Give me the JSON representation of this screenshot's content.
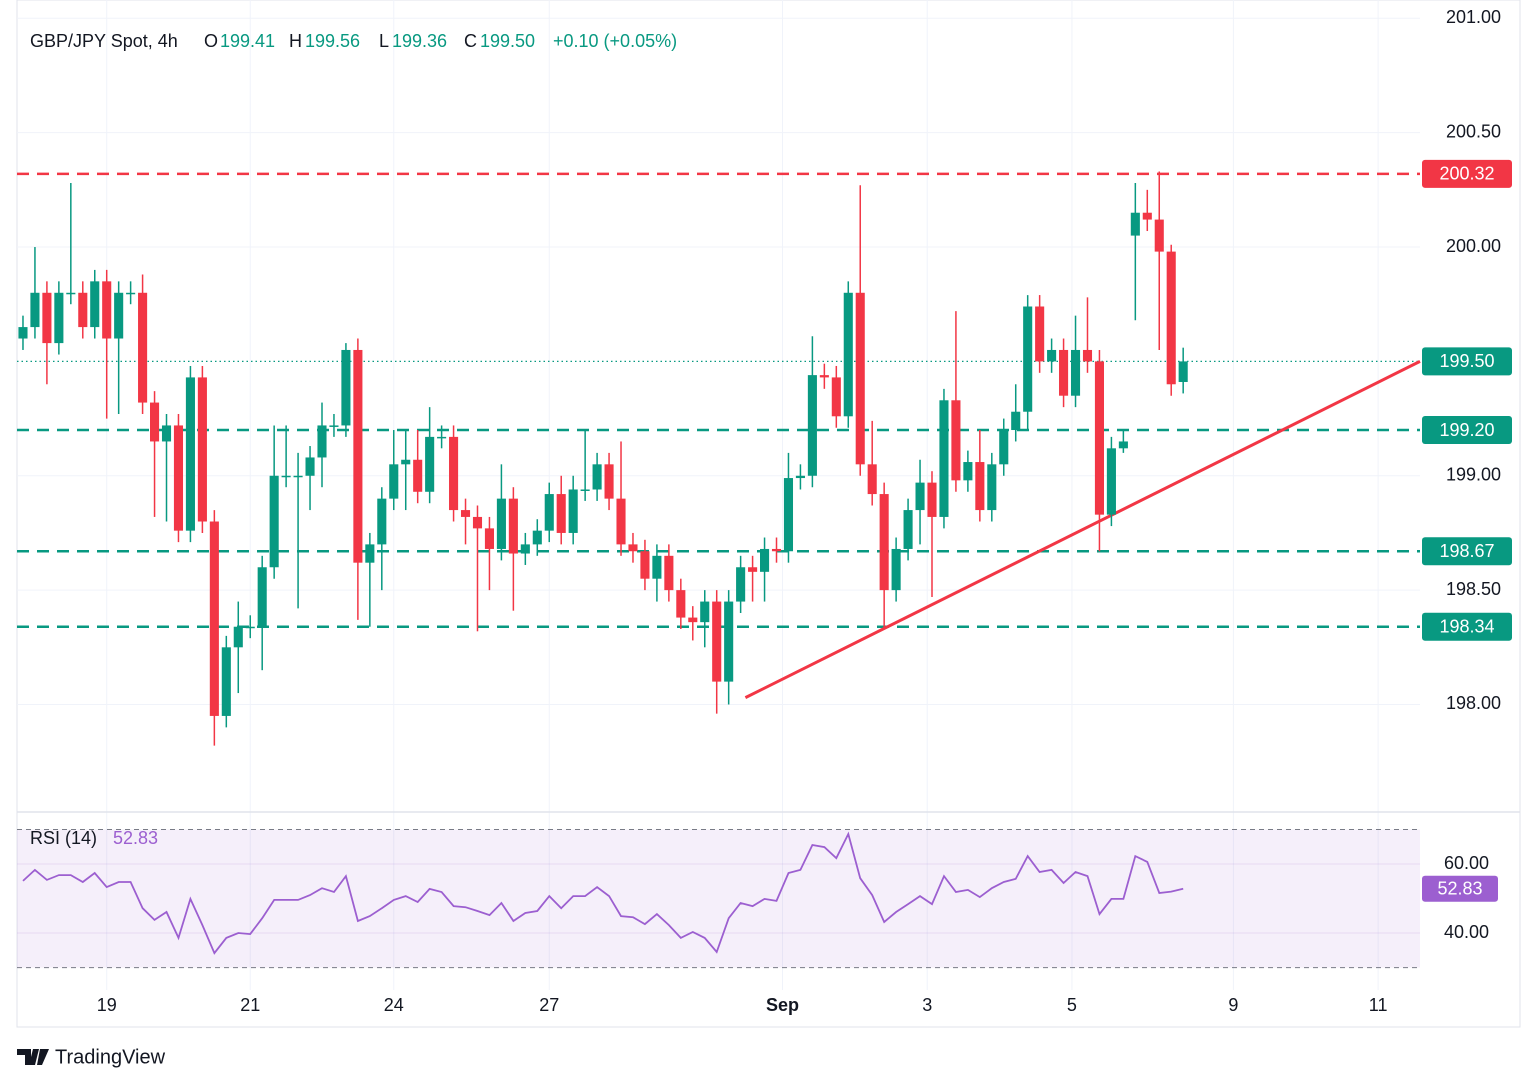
{
  "chart_data": {
    "type": "candlestick",
    "title": "GBP/JPY Spot, 4h",
    "legend_values": [
      {
        "name": "O",
        "label": "199.41"
      },
      {
        "name": "H",
        "label": "199.56"
      },
      {
        "name": "L",
        "label": "199.36"
      },
      {
        "name": "C",
        "label": "199.50"
      }
    ],
    "change": "+0.10 (+0.05%)",
    "up_color": "#089981",
    "down_color": "#f23645",
    "open": [
      199.6,
      199.65,
      199.8,
      199.58,
      199.8,
      199.8,
      199.65,
      199.85,
      199.6,
      199.8,
      199.8,
      199.32,
      199.15,
      199.22,
      198.76,
      199.43,
      198.8,
      197.95,
      198.25,
      198.34,
      198.34,
      198.6,
      199.0,
      199.0,
      199.0,
      199.08,
      199.22,
      199.22,
      199.55,
      198.62,
      198.7,
      198.9,
      199.05,
      199.07,
      198.93,
      199.17,
      199.17,
      198.85,
      198.82,
      198.77,
      198.68,
      198.9,
      198.66,
      198.7,
      198.76,
      198.92,
      198.75,
      198.94,
      198.94,
      199.05,
      198.9,
      198.7,
      198.67,
      198.55,
      198.65,
      198.5,
      198.38,
      198.36,
      198.45,
      198.1,
      198.45,
      198.6,
      198.58,
      198.68,
      198.67,
      198.99,
      199.0,
      199.44,
      199.43,
      199.26,
      199.8,
      199.05,
      198.92,
      198.5,
      198.68,
      198.85,
      198.97,
      198.82,
      199.33,
      198.98,
      199.06,
      198.85,
      199.05,
      199.2,
      199.28,
      199.74,
      199.5,
      199.55,
      199.35,
      199.55,
      199.5,
      198.83,
      199.12,
      200.05,
      200.15,
      200.12,
      199.98,
      199.41
    ],
    "high": [
      199.7,
      200.0,
      199.85,
      199.85,
      200.28,
      199.85,
      199.9,
      199.9,
      199.85,
      199.85,
      199.88,
      199.37,
      199.27,
      199.27,
      199.48,
      199.48,
      198.85,
      198.3,
      198.45,
      198.39,
      198.65,
      199.22,
      199.22,
      199.1,
      199.13,
      199.32,
      199.27,
      199.58,
      199.6,
      198.75,
      198.95,
      199.2,
      199.2,
      199.2,
      199.3,
      199.22,
      199.22,
      198.9,
      198.87,
      198.82,
      199.05,
      198.95,
      198.75,
      198.81,
      198.97,
      199.0,
      199.0,
      199.2,
      199.1,
      199.1,
      199.15,
      198.75,
      198.72,
      198.7,
      198.7,
      198.55,
      198.43,
      198.5,
      198.5,
      198.5,
      198.65,
      198.65,
      198.73,
      198.73,
      199.1,
      199.05,
      199.61,
      199.49,
      199.48,
      199.85,
      200.27,
      199.24,
      198.97,
      198.73,
      198.9,
      199.07,
      199.02,
      199.38,
      199.72,
      199.11,
      199.2,
      199.1,
      199.25,
      199.4,
      199.79,
      199.79,
      199.6,
      199.6,
      199.7,
      199.78,
      199.55,
      199.17,
      199.2,
      200.28,
      200.25,
      200.33,
      200.01,
      199.56
    ],
    "low": [
      199.55,
      199.6,
      199.4,
      199.53,
      199.75,
      199.6,
      199.6,
      199.25,
      199.27,
      199.75,
      199.27,
      198.82,
      198.8,
      198.71,
      198.71,
      198.75,
      197.82,
      197.9,
      198.05,
      198.29,
      198.15,
      198.55,
      198.95,
      198.42,
      198.85,
      198.95,
      199.17,
      199.17,
      198.37,
      198.34,
      198.5,
      198.85,
      198.85,
      198.88,
      198.88,
      199.12,
      198.8,
      198.7,
      198.32,
      198.5,
      198.63,
      198.41,
      198.61,
      198.65,
      198.71,
      198.7,
      198.7,
      198.89,
      198.89,
      198.85,
      198.65,
      198.62,
      198.5,
      198.45,
      198.45,
      198.33,
      198.28,
      198.25,
      197.96,
      198.0,
      198.4,
      198.45,
      198.45,
      198.62,
      198.62,
      198.94,
      198.95,
      199.38,
      199.21,
      199.21,
      199.0,
      198.87,
      198.33,
      198.45,
      198.63,
      198.7,
      198.47,
      198.77,
      198.93,
      198.93,
      198.8,
      198.8,
      199.0,
      199.15,
      199.2,
      199.45,
      199.45,
      199.3,
      199.3,
      199.45,
      198.67,
      198.78,
      199.1,
      199.68,
      200.07,
      199.55,
      199.35,
      199.36
    ],
    "close": [
      199.65,
      199.8,
      199.58,
      199.8,
      199.8,
      199.65,
      199.85,
      199.6,
      199.8,
      199.8,
      199.32,
      199.15,
      199.22,
      198.76,
      199.43,
      198.8,
      197.95,
      198.25,
      198.34,
      198.34,
      198.6,
      199.0,
      199.0,
      199.0,
      199.08,
      199.22,
      199.22,
      199.55,
      198.62,
      198.7,
      198.9,
      199.05,
      199.07,
      198.93,
      199.17,
      199.17,
      198.85,
      198.82,
      198.77,
      198.68,
      198.9,
      198.66,
      198.7,
      198.76,
      198.92,
      198.75,
      198.94,
      198.94,
      199.05,
      198.9,
      198.7,
      198.67,
      198.55,
      198.65,
      198.5,
      198.38,
      198.36,
      198.45,
      198.1,
      198.45,
      198.6,
      198.58,
      198.68,
      198.67,
      198.99,
      199.0,
      199.44,
      199.43,
      199.26,
      199.8,
      199.05,
      198.92,
      198.5,
      198.68,
      198.85,
      198.97,
      198.82,
      199.33,
      198.98,
      199.06,
      198.85,
      199.05,
      199.2,
      199.28,
      199.74,
      199.5,
      199.55,
      199.35,
      199.55,
      199.5,
      198.83,
      199.12,
      199.15,
      200.15,
      200.12,
      199.98,
      199.4,
      199.5
    ],
    "xlim": [
      -0.5,
      116.8
    ],
    "xticks": [
      {
        "value": 7,
        "label": "19"
      },
      {
        "value": 19,
        "label": "21"
      },
      {
        "value": 31,
        "label": "24"
      },
      {
        "value": 44,
        "label": "27"
      },
      {
        "value": 63.5,
        "label": "Sep"
      },
      {
        "value": 75.6,
        "label": "3"
      },
      {
        "value": 87.7,
        "label": "5"
      },
      {
        "value": 101.2,
        "label": "9"
      },
      {
        "value": 113.3,
        "label": "11"
      }
    ],
    "ylim": [
      197.53,
      201.08
    ],
    "yticks": [
      {
        "value": 198,
        "label": "198.00"
      },
      {
        "value": 198.5,
        "label": "198.50"
      },
      {
        "value": 199,
        "label": "199.00"
      },
      {
        "value": 200,
        "label": "200.00"
      },
      {
        "value": 200.5,
        "label": "200.50"
      },
      {
        "value": 201,
        "label": "201.00"
      }
    ],
    "grid": true,
    "levels": [
      {
        "value": 200.32,
        "label": "200.32",
        "color": "#f23645",
        "style": "dashed"
      },
      {
        "value": 199.5,
        "label": "199.50",
        "color": "#089981",
        "style": "dotted"
      },
      {
        "value": 199.2,
        "label": "199.20",
        "color": "#089981",
        "style": "dashed"
      },
      {
        "value": 198.67,
        "label": "198.67",
        "color": "#089981",
        "style": "dashed"
      },
      {
        "value": 198.34,
        "label": "198.34",
        "color": "#089981",
        "style": "dashed"
      }
    ],
    "trendline": {
      "color": "#f23645",
      "x": [
        60.4,
        116.8
      ],
      "y": [
        198.03,
        199.5
      ]
    },
    "rsi": {
      "name": "RSI (14)",
      "value_label": "52.83",
      "color": "#9c5fd0",
      "values": [
        55.1,
        58.3,
        55.4,
        56.8,
        56.8,
        54.8,
        57.4,
        53.3,
        54.8,
        54.8,
        47.2,
        43.8,
        46.1,
        38.6,
        49.9,
        42.3,
        34.2,
        38.6,
        40.0,
        39.7,
        44.3,
        49.6,
        49.6,
        49.6,
        51.0,
        53.0,
        51.9,
        56.5,
        43.5,
        44.9,
        47.2,
        49.6,
        50.7,
        49.0,
        52.8,
        51.9,
        47.8,
        47.5,
        46.4,
        45.2,
        48.7,
        43.5,
        45.8,
        46.4,
        50.7,
        47.2,
        50.7,
        50.7,
        53.3,
        50.7,
        44.9,
        44.6,
        42.6,
        45.5,
        42.3,
        38.6,
        40.3,
        38.6,
        34.5,
        44.3,
        48.7,
        47.8,
        49.9,
        49.3,
        57.4,
        58.3,
        65.5,
        64.9,
        61.7,
        68.7,
        55.9,
        51.0,
        43.2,
        46.1,
        48.4,
        50.7,
        48.4,
        56.5,
        51.9,
        52.5,
        50.4,
        53.0,
        54.8,
        55.7,
        62.3,
        57.7,
        58.3,
        54.5,
        57.7,
        56.5,
        45.5,
        49.9,
        49.9,
        62.3,
        60.6,
        51.6,
        52.0,
        52.83
      ],
      "ylim": [
        23.5,
        74.2
      ],
      "yticks": [
        {
          "value": 40,
          "label": "40.00"
        },
        {
          "value": 60,
          "label": "60.00"
        }
      ],
      "bands": [
        30,
        70
      ]
    },
    "footer": "TradingView"
  }
}
